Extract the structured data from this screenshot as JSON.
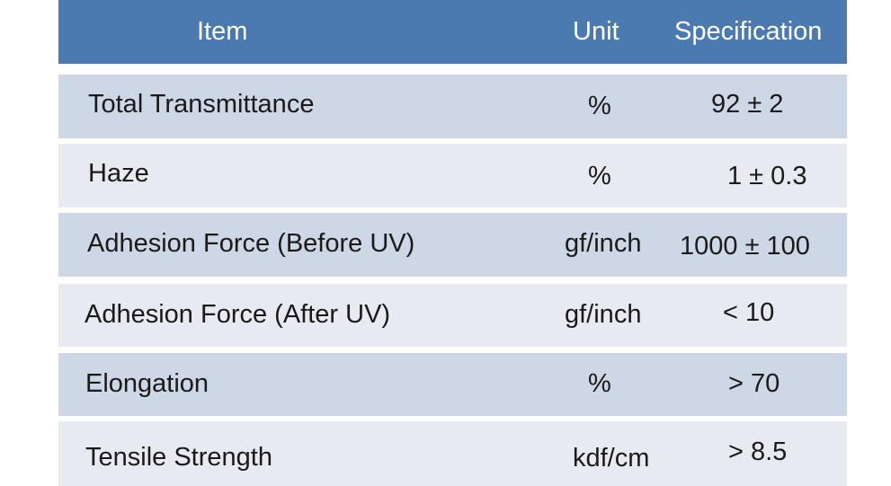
{
  "table": {
    "headers": {
      "item": "Item",
      "unit": "Unit",
      "specification": "Specification"
    },
    "rows": [
      {
        "item": "Total Transmittance",
        "unit": "%",
        "specification": "92 ± 2"
      },
      {
        "item": "Haze",
        "unit": "%",
        "specification": "1 ± 0.3"
      },
      {
        "item": "Adhesion Force (Before  UV)",
        "unit": "gf/inch",
        "specification": "1000 ± 100"
      },
      {
        "item": "Adhesion Force (After  UV)",
        "unit": "gf/inch",
        "specification": "< 10"
      },
      {
        "item": "Elongation",
        "unit": "%",
        "specification": "> 70"
      },
      {
        "item": "Tensile Strength",
        "unit": "kdf/cm",
        "specification": "> 8.5"
      }
    ]
  },
  "colors": {
    "header_background": "#4a7ab0",
    "header_text": "#ffffff",
    "row_band_dark": "#cdd7e5",
    "row_band_light": "#e7eaf0",
    "body_text": "#1a1a1a"
  }
}
